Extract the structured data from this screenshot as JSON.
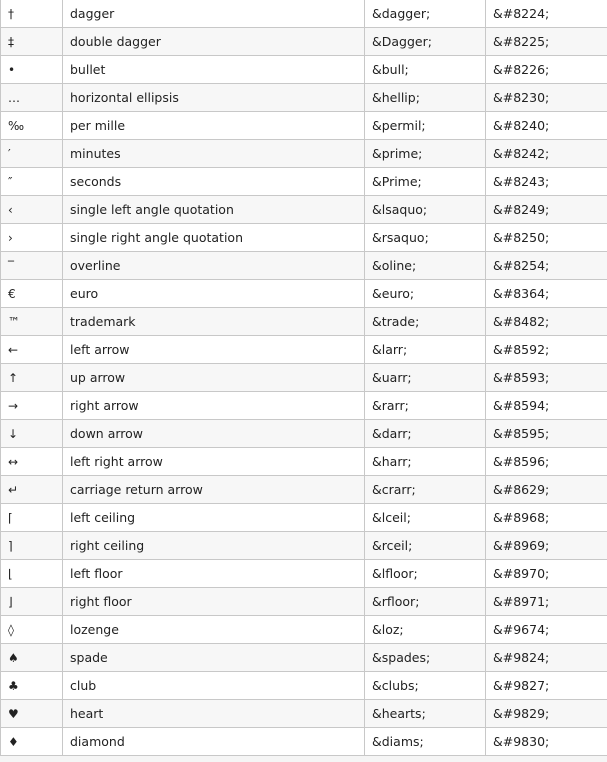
{
  "entities": [
    {
      "char": "†",
      "description": "dagger",
      "name_code": "&dagger;",
      "number_code": "&#8224;"
    },
    {
      "char": "‡",
      "description": "double dagger",
      "name_code": "&Dagger;",
      "number_code": "&#8225;"
    },
    {
      "char": "•",
      "description": "bullet",
      "name_code": "&bull;",
      "number_code": "&#8226;"
    },
    {
      "char": "…",
      "description": "horizontal ellipsis",
      "name_code": "&hellip;",
      "number_code": "&#8230;"
    },
    {
      "char": "‰",
      "description": "per mille",
      "name_code": "&permil;",
      "number_code": "&#8240;"
    },
    {
      "char": "′",
      "description": "minutes",
      "name_code": "&prime;",
      "number_code": "&#8242;"
    },
    {
      "char": "″",
      "description": "seconds",
      "name_code": "&Prime;",
      "number_code": "&#8243;"
    },
    {
      "char": "‹",
      "description": "single left angle quotation",
      "name_code": "&lsaquo;",
      "number_code": "&#8249;"
    },
    {
      "char": "›",
      "description": "single right angle quotation",
      "name_code": "&rsaquo;",
      "number_code": "&#8250;"
    },
    {
      "char": "‾",
      "description": "overline",
      "name_code": "&oline;",
      "number_code": "&#8254;"
    },
    {
      "char": "€",
      "description": "euro",
      "name_code": "&euro;",
      "number_code": "&#8364;"
    },
    {
      "char": "™",
      "description": "trademark",
      "name_code": "&trade;",
      "number_code": "&#8482;"
    },
    {
      "char": "←",
      "description": "left arrow",
      "name_code": "&larr;",
      "number_code": "&#8592;"
    },
    {
      "char": "↑",
      "description": "up arrow",
      "name_code": "&uarr;",
      "number_code": "&#8593;"
    },
    {
      "char": "→",
      "description": "right arrow",
      "name_code": "&rarr;",
      "number_code": "&#8594;"
    },
    {
      "char": "↓",
      "description": "down arrow",
      "name_code": "&darr;",
      "number_code": "&#8595;"
    },
    {
      "char": "↔",
      "description": "left right arrow",
      "name_code": "&harr;",
      "number_code": "&#8596;"
    },
    {
      "char": "↵",
      "description": "carriage return arrow",
      "name_code": "&crarr;",
      "number_code": "&#8629;"
    },
    {
      "char": "⌈",
      "description": "left ceiling",
      "name_code": "&lceil;",
      "number_code": "&#8968;"
    },
    {
      "char": "⌉",
      "description": "right ceiling",
      "name_code": "&rceil;",
      "number_code": "&#8969;"
    },
    {
      "char": "⌊",
      "description": "left floor",
      "name_code": "&lfloor;",
      "number_code": "&#8970;"
    },
    {
      "char": "⌋",
      "description": "right floor",
      "name_code": "&rfloor;",
      "number_code": "&#8971;"
    },
    {
      "char": "◊",
      "description": "lozenge",
      "name_code": "&loz;",
      "number_code": "&#9674;"
    },
    {
      "char": "♠",
      "description": "spade",
      "name_code": "&spades;",
      "number_code": "&#9824;"
    },
    {
      "char": "♣",
      "description": "club",
      "name_code": "&clubs;",
      "number_code": "&#9827;"
    },
    {
      "char": "♥",
      "description": "heart",
      "name_code": "&hearts;",
      "number_code": "&#9829;"
    },
    {
      "char": "♦",
      "description": "diamond",
      "name_code": "&diams;",
      "number_code": "&#9830;"
    }
  ]
}
